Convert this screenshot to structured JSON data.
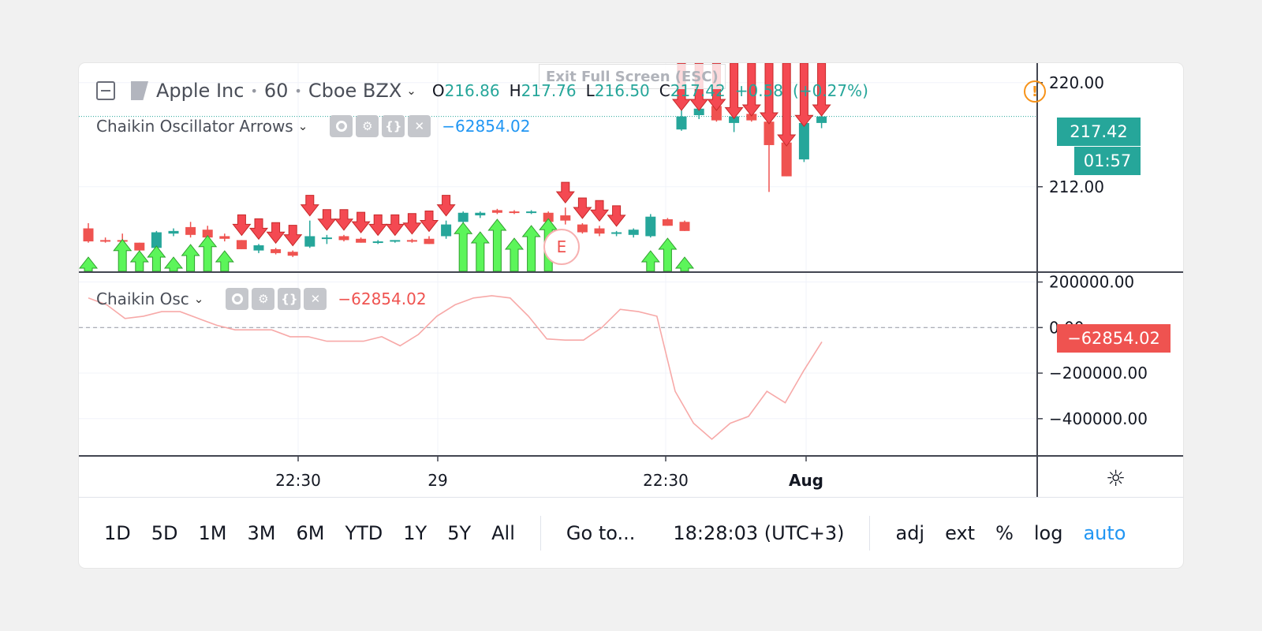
{
  "header": {
    "symbol": "Apple Inc",
    "interval": "60",
    "exchange": "Cboe BZX",
    "ohlc": {
      "o_label": "O",
      "o": "216.86",
      "h_label": "H",
      "h": "217.76",
      "l_label": "L",
      "l": "216.50",
      "c_label": "C",
      "c": "217.42",
      "change": "+0.58",
      "change_pct": "(+0.27%)"
    }
  },
  "exit_fullscreen_label": "Exit Full Screen (ESC)",
  "indicator_main": {
    "name": "Chaikin Oscillator Arrows",
    "value": "−62854.02"
  },
  "indicator_osc": {
    "name": "Chaikin Osc",
    "value": "−62854.02"
  },
  "price_scale": {
    "labels": [
      "220.00",
      "212.00"
    ],
    "current_price": "217.42",
    "countdown": "01:57"
  },
  "osc_scale": {
    "labels": [
      "200000.00",
      "0.00",
      "−200000.00",
      "−400000.00"
    ],
    "current_value": "−62854.02"
  },
  "time_axis": {
    "labels": [
      "22:30",
      "29",
      "22:30",
      "Aug"
    ]
  },
  "earnings_marker": "E",
  "toolbar": {
    "ranges": [
      "1D",
      "5D",
      "1M",
      "3M",
      "6M",
      "YTD",
      "1Y",
      "5Y",
      "All"
    ],
    "goto": "Go to...",
    "clock": "18:28:03 (UTC+3)",
    "options": [
      "adj",
      "ext",
      "%",
      "log",
      "auto"
    ]
  },
  "colors": {
    "up": "#26a69a",
    "down": "#ef5350",
    "arrow_up": "#5cf55a",
    "arrow_down": "#f44952",
    "osc_line": "#f7a9a8",
    "accent": "#2196f3"
  },
  "chart_data": [
    {
      "type": "candlestick",
      "title": "Apple Inc · 60 · Cboe BZX",
      "ylim": [
        205.5,
        221.5
      ],
      "yticks": [
        220,
        212
      ],
      "x_ticks": [
        "22:30",
        "29",
        "22:30",
        "Aug"
      ],
      "candles": [
        {
          "o": 208.8,
          "h": 209.2,
          "l": 207.7,
          "c": 207.8
        },
        {
          "o": 207.9,
          "h": 208.1,
          "l": 207.7,
          "c": 207.8
        },
        {
          "o": 207.9,
          "h": 208.4,
          "l": 207.7,
          "c": 207.8
        },
        {
          "o": 207.7,
          "h": 207.7,
          "l": 207.0,
          "c": 207.1
        },
        {
          "o": 207.3,
          "h": 208.6,
          "l": 207.2,
          "c": 208.5
        },
        {
          "o": 208.4,
          "h": 208.8,
          "l": 208.2,
          "c": 208.6
        },
        {
          "o": 208.9,
          "h": 209.3,
          "l": 208.1,
          "c": 208.3
        },
        {
          "o": 208.7,
          "h": 209.0,
          "l": 208.0,
          "c": 208.1
        },
        {
          "o": 208.2,
          "h": 208.4,
          "l": 207.8,
          "c": 208.0
        },
        {
          "o": 207.9,
          "h": 207.9,
          "l": 207.2,
          "c": 207.2
        },
        {
          "o": 207.1,
          "h": 207.6,
          "l": 206.9,
          "c": 207.5
        },
        {
          "o": 207.2,
          "h": 207.3,
          "l": 206.8,
          "c": 206.9
        },
        {
          "o": 207.0,
          "h": 207.1,
          "l": 206.6,
          "c": 206.7
        },
        {
          "o": 207.4,
          "h": 209.4,
          "l": 207.3,
          "c": 208.2
        },
        {
          "o": 208.0,
          "h": 208.3,
          "l": 207.6,
          "c": 208.1
        },
        {
          "o": 208.2,
          "h": 208.3,
          "l": 207.8,
          "c": 207.9
        },
        {
          "o": 208.0,
          "h": 208.1,
          "l": 207.7,
          "c": 207.7
        },
        {
          "o": 207.8,
          "h": 207.9,
          "l": 207.6,
          "c": 207.8
        },
        {
          "o": 207.8,
          "h": 207.9,
          "l": 207.7,
          "c": 207.9
        },
        {
          "o": 207.9,
          "h": 208.0,
          "l": 207.7,
          "c": 207.8
        },
        {
          "o": 208.0,
          "h": 208.2,
          "l": 207.6,
          "c": 207.6
        },
        {
          "o": 208.2,
          "h": 209.4,
          "l": 208.0,
          "c": 209.1
        },
        {
          "o": 209.3,
          "h": 210.1,
          "l": 209.0,
          "c": 210.0
        },
        {
          "o": 209.8,
          "h": 210.1,
          "l": 209.6,
          "c": 210.0
        },
        {
          "o": 210.2,
          "h": 210.3,
          "l": 209.9,
          "c": 210.0
        },
        {
          "o": 210.1,
          "h": 210.2,
          "l": 209.9,
          "c": 210.0
        },
        {
          "o": 210.0,
          "h": 210.2,
          "l": 209.9,
          "c": 210.1
        },
        {
          "o": 210.0,
          "h": 210.1,
          "l": 209.3,
          "c": 209.3
        },
        {
          "o": 209.8,
          "h": 210.4,
          "l": 209.1,
          "c": 209.4
        },
        {
          "o": 209.1,
          "h": 209.2,
          "l": 208.4,
          "c": 208.5
        },
        {
          "o": 208.8,
          "h": 209.0,
          "l": 208.2,
          "c": 208.4
        },
        {
          "o": 208.4,
          "h": 208.6,
          "l": 208.2,
          "c": 208.5
        },
        {
          "o": 208.3,
          "h": 208.8,
          "l": 208.1,
          "c": 208.7
        },
        {
          "o": 208.2,
          "h": 209.9,
          "l": 208.1,
          "c": 209.7
        },
        {
          "o": 209.5,
          "h": 209.6,
          "l": 209.0,
          "c": 209.0
        },
        {
          "o": 209.3,
          "h": 209.4,
          "l": 208.6,
          "c": 208.6
        },
        {
          "o": 216.4,
          "h": 221.2,
          "l": 216.3,
          "c": 217.4
        },
        {
          "o": 217.5,
          "h": 218.3,
          "l": 217.2,
          "c": 218.0
        },
        {
          "o": 218.2,
          "h": 218.4,
          "l": 217.0,
          "c": 217.1
        },
        {
          "o": 216.9,
          "h": 217.6,
          "l": 216.2,
          "c": 217.4
        },
        {
          "o": 217.6,
          "h": 217.8,
          "l": 217.0,
          "c": 217.1
        },
        {
          "o": 217.0,
          "h": 217.2,
          "l": 211.6,
          "c": 215.2
        },
        {
          "o": 215.4,
          "h": 215.5,
          "l": 212.8,
          "c": 212.8
        },
        {
          "o": 214.1,
          "h": 217.0,
          "l": 213.9,
          "c": 216.9
        },
        {
          "o": 216.9,
          "h": 217.8,
          "l": 216.5,
          "c": 217.4
        }
      ],
      "arrow_directions": [
        "up",
        "none",
        "up",
        "up",
        "up",
        "up",
        "up",
        "up",
        "up",
        "down",
        "down",
        "down",
        "down",
        "down",
        "down",
        "down",
        "down",
        "down",
        "down",
        "down",
        "down",
        "down",
        "up",
        "up",
        "up",
        "up",
        "up",
        "up",
        "down",
        "down",
        "down",
        "down",
        "none",
        "up",
        "up",
        "up",
        "down",
        "down",
        "down",
        "down",
        "down",
        "down",
        "down",
        "down",
        "down"
      ]
    },
    {
      "type": "line",
      "title": "Chaikin Osc",
      "ylim": [
        -560000,
        240000
      ],
      "yticks": [
        200000,
        0,
        -200000,
        -400000
      ],
      "series": [
        {
          "name": "Chaikin Osc",
          "values": [
            130000,
            100000,
            40000,
            50000,
            70000,
            70000,
            40000,
            10000,
            -10000,
            -10000,
            -10000,
            -40000,
            -40000,
            -60000,
            -60000,
            -60000,
            -40000,
            -80000,
            -30000,
            50000,
            100000,
            130000,
            140000,
            130000,
            50000,
            -50000,
            -55000,
            -55000,
            0,
            80000,
            70000,
            50000,
            -280000,
            -420000,
            -490000,
            -420000,
            -390000,
            -280000,
            -330000,
            -190000,
            -62854.02
          ]
        }
      ]
    }
  ]
}
